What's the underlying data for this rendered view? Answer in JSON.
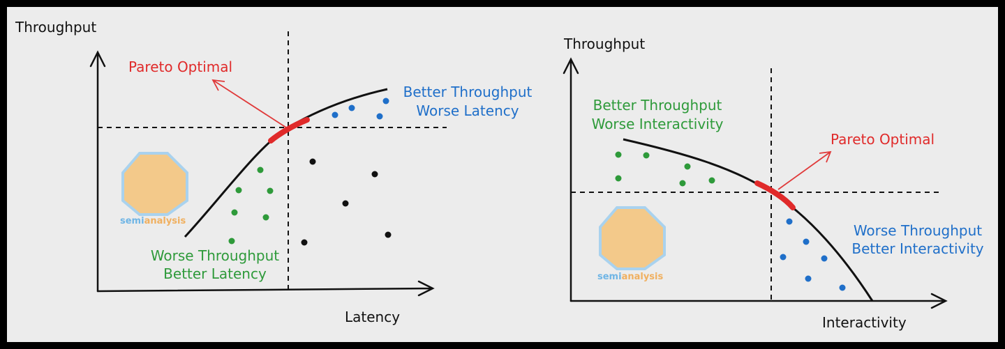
{
  "left": {
    "y_axis_label": "Throughput",
    "x_axis_label": "Latency",
    "pareto_label": "Pareto Optimal",
    "upper_region": [
      "Better Throughput",
      "Worse Latency"
    ],
    "lower_region": [
      "Worse Throughput",
      "Better Latency"
    ],
    "logo": [
      "semi",
      "analysis"
    ]
  },
  "right": {
    "y_axis_label": "Throughput",
    "x_axis_label": "Interactivity",
    "pareto_label": "Pareto Optimal",
    "upper_region": [
      "Better Throughput",
      "Worse Interactivity"
    ],
    "lower_region": [
      "Worse Throughput",
      "Better Interactivity"
    ],
    "logo": [
      "semi",
      "analysis"
    ]
  }
}
